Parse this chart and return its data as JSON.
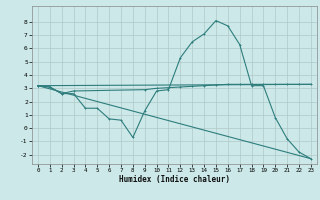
{
  "background_color": "#cce8e8",
  "grid_color": "#b0c8c8",
  "line_color": "#2e7d7d",
  "xlabel": "Humidex (Indice chaleur)",
  "xlim": [
    -0.5,
    23.5
  ],
  "ylim": [
    -2.7,
    9.2
  ],
  "yticks": [
    -2,
    -1,
    0,
    1,
    2,
    3,
    4,
    5,
    6,
    7,
    8
  ],
  "xticks": [
    0,
    1,
    2,
    3,
    4,
    5,
    6,
    7,
    8,
    9,
    10,
    11,
    12,
    13,
    14,
    15,
    16,
    17,
    18,
    19,
    20,
    21,
    22,
    23
  ],
  "line1_x": [
    0,
    1,
    2,
    3,
    4,
    5,
    6,
    7,
    8,
    9,
    10,
    11,
    12,
    13,
    14,
    15,
    16,
    17,
    18,
    19,
    20,
    21,
    22,
    23
  ],
  "line1_y": [
    3.2,
    3.1,
    2.6,
    2.6,
    1.5,
    1.5,
    0.7,
    0.6,
    -0.7,
    1.3,
    2.8,
    2.9,
    5.3,
    6.5,
    7.1,
    8.1,
    7.7,
    6.3,
    3.2,
    3.2,
    0.8,
    -0.8,
    -1.8,
    -2.3
  ],
  "line2_x": [
    0,
    1,
    2,
    3,
    9,
    10,
    11,
    12,
    13,
    14,
    15,
    16,
    17,
    18,
    19,
    20,
    21,
    22,
    23
  ],
  "line2_y": [
    3.2,
    3.1,
    2.6,
    2.8,
    2.9,
    3.0,
    3.05,
    3.1,
    3.15,
    3.2,
    3.25,
    3.3,
    3.3,
    3.3,
    3.3,
    3.3,
    3.3,
    3.3,
    3.3
  ],
  "line3_x": [
    0,
    23
  ],
  "line3_y": [
    3.2,
    -2.3
  ],
  "line4_x": [
    0,
    23
  ],
  "line4_y": [
    3.2,
    3.3
  ]
}
